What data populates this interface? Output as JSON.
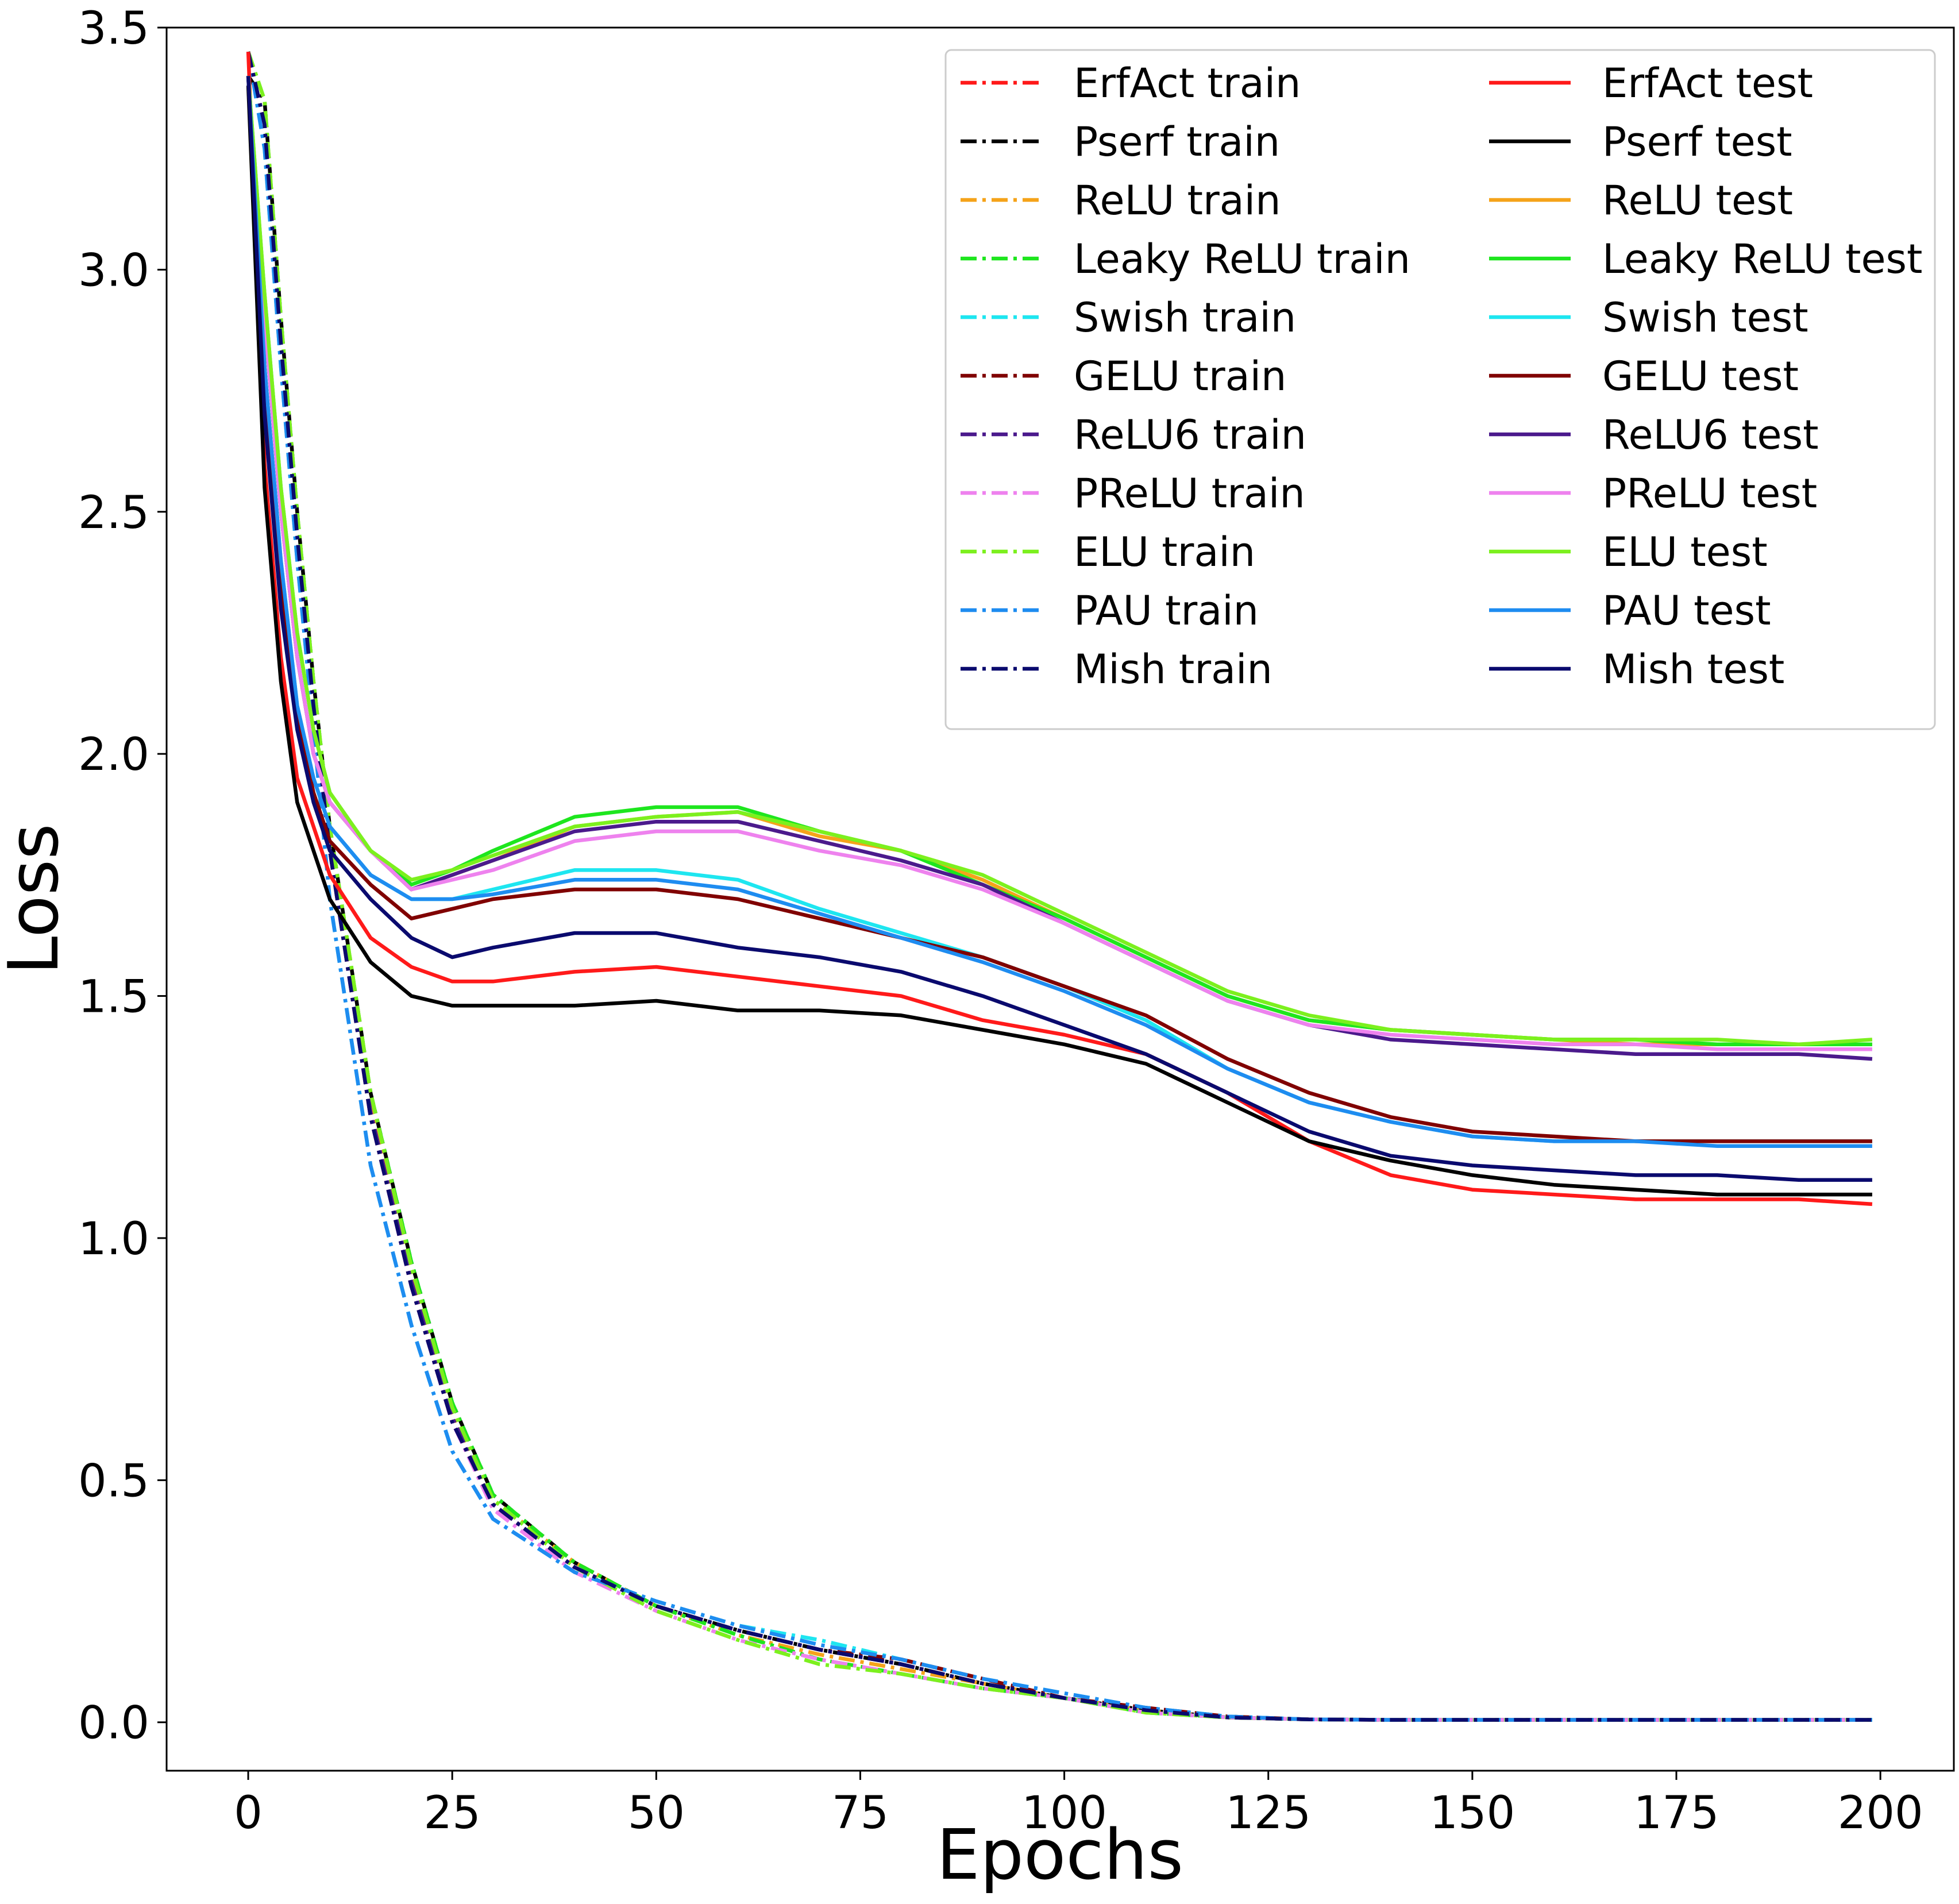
{
  "chart_data": {
    "type": "line",
    "xlabel": "Epochs",
    "ylabel": "Loss",
    "x": [
      0,
      2,
      4,
      6,
      8,
      10,
      15,
      20,
      25,
      30,
      40,
      50,
      60,
      70,
      80,
      90,
      100,
      110,
      120,
      130,
      140,
      150,
      160,
      170,
      180,
      190,
      199
    ],
    "xlim": [
      -10,
      209
    ],
    "xticks": [
      0,
      25,
      50,
      75,
      100,
      125,
      150,
      175,
      200
    ],
    "ylim": [
      -0.1,
      3.5
    ],
    "yticks": [
      {
        "value": 0,
        "label": "0.0"
      },
      0.5,
      {
        "value": 1,
        "label": "1.0"
      },
      1.5,
      {
        "value": 2,
        "label": "2.0"
      },
      2.5,
      {
        "value": 3,
        "label": "3.0"
      },
      3.5
    ],
    "grid": false,
    "legend": {
      "loc": "upper right",
      "ncol": 2
    },
    "series": [
      {
        "name": "ErfAct train",
        "color": "#ff1a1a",
        "linestyle": "dashdot",
        "values": [
          3.45,
          3.3,
          2.85,
          2.45,
          2.1,
          1.8,
          1.25,
          0.9,
          0.62,
          0.45,
          0.32,
          0.24,
          0.19,
          0.15,
          0.12,
          0.08,
          0.05,
          0.025,
          0.01,
          0.006,
          0.005,
          0.005,
          0.005,
          0.005,
          0.005,
          0.005,
          0.005
        ]
      },
      {
        "name": "Pserf train",
        "color": "#000000",
        "linestyle": "dashdot",
        "values": [
          3.4,
          3.35,
          2.9,
          2.5,
          2.15,
          1.85,
          1.3,
          0.95,
          0.66,
          0.47,
          0.33,
          0.24,
          0.19,
          0.15,
          0.12,
          0.08,
          0.05,
          0.025,
          0.01,
          0.006,
          0.005,
          0.005,
          0.005,
          0.005,
          0.005,
          0.005,
          0.005
        ]
      },
      {
        "name": "ReLU train",
        "color": "#f5a31a",
        "linestyle": "dashdot",
        "values": [
          3.45,
          3.3,
          2.85,
          2.45,
          2.1,
          1.8,
          1.27,
          0.92,
          0.64,
          0.46,
          0.33,
          0.24,
          0.18,
          0.14,
          0.11,
          0.08,
          0.05,
          0.025,
          0.01,
          0.006,
          0.005,
          0.005,
          0.005,
          0.005,
          0.005,
          0.005,
          0.005
        ]
      },
      {
        "name": "Leaky ReLU train",
        "color": "#1ee61e",
        "linestyle": "dashdot",
        "values": [
          3.45,
          3.35,
          2.9,
          2.5,
          2.15,
          1.85,
          1.3,
          0.95,
          0.66,
          0.47,
          0.33,
          0.24,
          0.18,
          0.13,
          0.1,
          0.07,
          0.05,
          0.02,
          0.01,
          0.006,
          0.005,
          0.005,
          0.005,
          0.005,
          0.005,
          0.005,
          0.005
        ]
      },
      {
        "name": "Swish train",
        "color": "#1ee6f0",
        "linestyle": "dashdot",
        "values": [
          3.45,
          3.25,
          2.8,
          2.4,
          2.05,
          1.7,
          1.15,
          0.82,
          0.56,
          0.42,
          0.31,
          0.25,
          0.2,
          0.17,
          0.13,
          0.09,
          0.06,
          0.03,
          0.012,
          0.006,
          0.005,
          0.005,
          0.005,
          0.005,
          0.005,
          0.005,
          0.005
        ]
      },
      {
        "name": "GELU train",
        "color": "#800000",
        "linestyle": "dashdot",
        "values": [
          3.45,
          3.3,
          2.85,
          2.45,
          2.1,
          1.8,
          1.25,
          0.9,
          0.62,
          0.45,
          0.32,
          0.24,
          0.19,
          0.15,
          0.13,
          0.09,
          0.05,
          0.03,
          0.012,
          0.006,
          0.005,
          0.005,
          0.005,
          0.005,
          0.005,
          0.005,
          0.005
        ]
      },
      {
        "name": "ReLU6 train",
        "color": "#4b1a8c",
        "linestyle": "dashdot",
        "values": [
          3.45,
          3.3,
          2.85,
          2.45,
          2.1,
          1.8,
          1.26,
          0.91,
          0.63,
          0.45,
          0.32,
          0.24,
          0.19,
          0.15,
          0.12,
          0.08,
          0.05,
          0.025,
          0.01,
          0.006,
          0.005,
          0.005,
          0.005,
          0.005,
          0.005,
          0.005,
          0.005
        ]
      },
      {
        "name": "PReLU train",
        "color": "#ee82ee",
        "linestyle": "dashdot",
        "values": [
          3.45,
          3.3,
          2.85,
          2.45,
          2.1,
          1.8,
          1.25,
          0.9,
          0.62,
          0.44,
          0.31,
          0.23,
          0.17,
          0.13,
          0.1,
          0.07,
          0.05,
          0.02,
          0.01,
          0.006,
          0.005,
          0.005,
          0.005,
          0.005,
          0.005,
          0.005,
          0.005
        ]
      },
      {
        "name": "ELU train",
        "color": "#7cf01e",
        "linestyle": "dashdot",
        "values": [
          3.45,
          3.35,
          2.9,
          2.5,
          2.15,
          1.85,
          1.3,
          0.94,
          0.65,
          0.46,
          0.32,
          0.23,
          0.17,
          0.12,
          0.1,
          0.07,
          0.05,
          0.02,
          0.01,
          0.006,
          0.005,
          0.005,
          0.005,
          0.005,
          0.005,
          0.005,
          0.005
        ]
      },
      {
        "name": "PAU train",
        "color": "#1e8cf0",
        "linestyle": "dashdot",
        "values": [
          3.45,
          3.25,
          2.8,
          2.4,
          2.05,
          1.7,
          1.15,
          0.82,
          0.56,
          0.42,
          0.31,
          0.25,
          0.2,
          0.16,
          0.13,
          0.09,
          0.06,
          0.03,
          0.012,
          0.006,
          0.005,
          0.005,
          0.005,
          0.005,
          0.005,
          0.005,
          0.005
        ]
      },
      {
        "name": "Mish train",
        "color": "#0a0a6e",
        "linestyle": "dashdot",
        "values": [
          3.45,
          3.3,
          2.85,
          2.45,
          2.1,
          1.8,
          1.25,
          0.9,
          0.62,
          0.45,
          0.32,
          0.24,
          0.19,
          0.15,
          0.12,
          0.08,
          0.05,
          0.025,
          0.01,
          0.006,
          0.005,
          0.005,
          0.005,
          0.005,
          0.005,
          0.005,
          0.005
        ]
      },
      {
        "name": "ErfAct test",
        "color": "#ff1a1a",
        "linestyle": "solid",
        "values": [
          3.45,
          2.6,
          2.2,
          1.95,
          1.85,
          1.75,
          1.62,
          1.56,
          1.53,
          1.53,
          1.55,
          1.56,
          1.54,
          1.52,
          1.5,
          1.45,
          1.42,
          1.38,
          1.3,
          1.2,
          1.13,
          1.1,
          1.09,
          1.08,
          1.08,
          1.08,
          1.07
        ]
      },
      {
        "name": "Pserf test",
        "color": "#000000",
        "linestyle": "solid",
        "values": [
          3.38,
          2.55,
          2.15,
          1.9,
          1.8,
          1.7,
          1.57,
          1.5,
          1.48,
          1.48,
          1.48,
          1.49,
          1.47,
          1.47,
          1.46,
          1.43,
          1.4,
          1.36,
          1.28,
          1.2,
          1.16,
          1.13,
          1.11,
          1.1,
          1.09,
          1.09,
          1.09
        ]
      },
      {
        "name": "ReLU test",
        "color": "#f5a31a",
        "linestyle": "solid",
        "values": [
          3.4,
          2.9,
          2.5,
          2.2,
          2.0,
          1.9,
          1.8,
          1.72,
          1.75,
          1.78,
          1.85,
          1.87,
          1.88,
          1.83,
          1.8,
          1.74,
          1.66,
          1.58,
          1.5,
          1.45,
          1.43,
          1.42,
          1.41,
          1.4,
          1.4,
          1.4,
          1.4
        ]
      },
      {
        "name": "Leaky ReLU test",
        "color": "#1ee61e",
        "linestyle": "solid",
        "values": [
          3.4,
          2.95,
          2.55,
          2.25,
          2.05,
          1.92,
          1.8,
          1.73,
          1.76,
          1.8,
          1.87,
          1.89,
          1.89,
          1.84,
          1.8,
          1.73,
          1.66,
          1.58,
          1.5,
          1.45,
          1.43,
          1.42,
          1.41,
          1.41,
          1.4,
          1.4,
          1.4
        ]
      },
      {
        "name": "Swish test",
        "color": "#1ee6f0",
        "linestyle": "solid",
        "values": [
          3.4,
          2.8,
          2.4,
          2.1,
          1.95,
          1.85,
          1.75,
          1.7,
          1.7,
          1.72,
          1.76,
          1.76,
          1.74,
          1.68,
          1.63,
          1.58,
          1.52,
          1.45,
          1.35,
          1.28,
          1.24,
          1.21,
          1.2,
          1.2,
          1.2,
          1.2,
          1.2
        ]
      },
      {
        "name": "GELU test",
        "color": "#800000",
        "linestyle": "solid",
        "values": [
          3.4,
          2.75,
          2.35,
          2.08,
          1.92,
          1.82,
          1.73,
          1.66,
          1.68,
          1.7,
          1.72,
          1.72,
          1.7,
          1.66,
          1.62,
          1.58,
          1.52,
          1.46,
          1.37,
          1.3,
          1.25,
          1.22,
          1.21,
          1.2,
          1.2,
          1.2,
          1.2
        ]
      },
      {
        "name": "ReLU6 test",
        "color": "#4b1a8c",
        "linestyle": "solid",
        "values": [
          3.4,
          2.9,
          2.5,
          2.2,
          2.0,
          1.9,
          1.8,
          1.72,
          1.75,
          1.78,
          1.84,
          1.86,
          1.86,
          1.82,
          1.78,
          1.73,
          1.65,
          1.57,
          1.49,
          1.44,
          1.41,
          1.4,
          1.39,
          1.38,
          1.38,
          1.38,
          1.37
        ]
      },
      {
        "name": "PReLU test",
        "color": "#ee82ee",
        "linestyle": "solid",
        "values": [
          3.4,
          2.9,
          2.5,
          2.2,
          2.0,
          1.9,
          1.8,
          1.72,
          1.74,
          1.76,
          1.82,
          1.84,
          1.84,
          1.8,
          1.77,
          1.72,
          1.65,
          1.57,
          1.49,
          1.44,
          1.42,
          1.41,
          1.4,
          1.4,
          1.39,
          1.39,
          1.39
        ]
      },
      {
        "name": "ELU test",
        "color": "#7cf01e",
        "linestyle": "solid",
        "values": [
          3.4,
          2.95,
          2.55,
          2.25,
          2.05,
          1.92,
          1.8,
          1.74,
          1.76,
          1.79,
          1.85,
          1.87,
          1.88,
          1.84,
          1.8,
          1.75,
          1.67,
          1.59,
          1.51,
          1.46,
          1.43,
          1.42,
          1.41,
          1.41,
          1.41,
          1.4,
          1.41
        ]
      },
      {
        "name": "PAU test",
        "color": "#1e8cf0",
        "linestyle": "solid",
        "values": [
          3.4,
          2.8,
          2.4,
          2.1,
          1.95,
          1.85,
          1.75,
          1.7,
          1.7,
          1.71,
          1.74,
          1.74,
          1.72,
          1.67,
          1.62,
          1.57,
          1.51,
          1.44,
          1.35,
          1.28,
          1.24,
          1.21,
          1.2,
          1.2,
          1.19,
          1.19,
          1.19
        ]
      },
      {
        "name": "Mish test",
        "color": "#0a0a6e",
        "linestyle": "solid",
        "values": [
          3.4,
          2.7,
          2.3,
          2.05,
          1.9,
          1.8,
          1.7,
          1.62,
          1.58,
          1.6,
          1.63,
          1.63,
          1.6,
          1.58,
          1.55,
          1.5,
          1.44,
          1.38,
          1.3,
          1.22,
          1.17,
          1.15,
          1.14,
          1.13,
          1.13,
          1.12,
          1.12
        ]
      }
    ]
  }
}
